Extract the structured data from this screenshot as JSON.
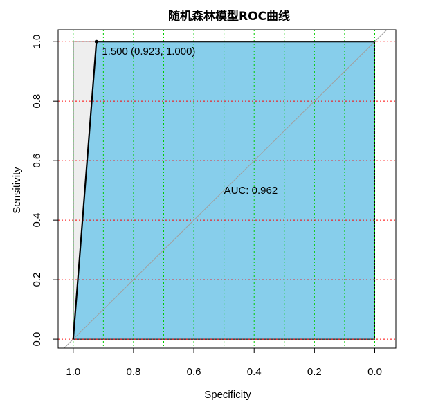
{
  "chart_data": {
    "type": "line",
    "title": "随机森林模型ROC曲线",
    "xlabel": "Specificity",
    "ylabel": "Sensitivity",
    "x_reversed": true,
    "xlim": [
      1.05,
      -0.07
    ],
    "ylim": [
      -0.03,
      1.04
    ],
    "x_ticks": [
      "1.0",
      "0.8",
      "0.6",
      "0.4",
      "0.2",
      "0.0"
    ],
    "x_tick_values": [
      1.0,
      0.8,
      0.6,
      0.4,
      0.2,
      0.0
    ],
    "y_ticks": [
      "0.0",
      "0.2",
      "0.4",
      "0.6",
      "0.8",
      "1.0"
    ],
    "y_tick_values": [
      0.0,
      0.2,
      0.4,
      0.6,
      0.8,
      1.0
    ],
    "grid_x_values": [
      1.0,
      0.9,
      0.8,
      0.7,
      0.6,
      0.5,
      0.4,
      0.3,
      0.2,
      0.1,
      0.0
    ],
    "grid_y_values": [
      0.0,
      0.2,
      0.4,
      0.6,
      0.8,
      1.0
    ],
    "series": [
      {
        "specificity": [
          1.0,
          0.923,
          0.0
        ],
        "sensitivity": [
          0.0,
          1.0,
          1.0
        ]
      }
    ],
    "threshold_point": {
      "specificity": 0.923,
      "sensitivity": 1.0,
      "label": "1.500 (0.923, 1.000)"
    },
    "auc_label": "AUC: 0.962",
    "colors": {
      "auc_fill": "#87ceeb",
      "max_fill": "#eeeeee",
      "curve": "#000000",
      "diagonal": "#a0a0a0",
      "grid_x": "#00cc00",
      "grid_y": "#ff0000"
    }
  }
}
